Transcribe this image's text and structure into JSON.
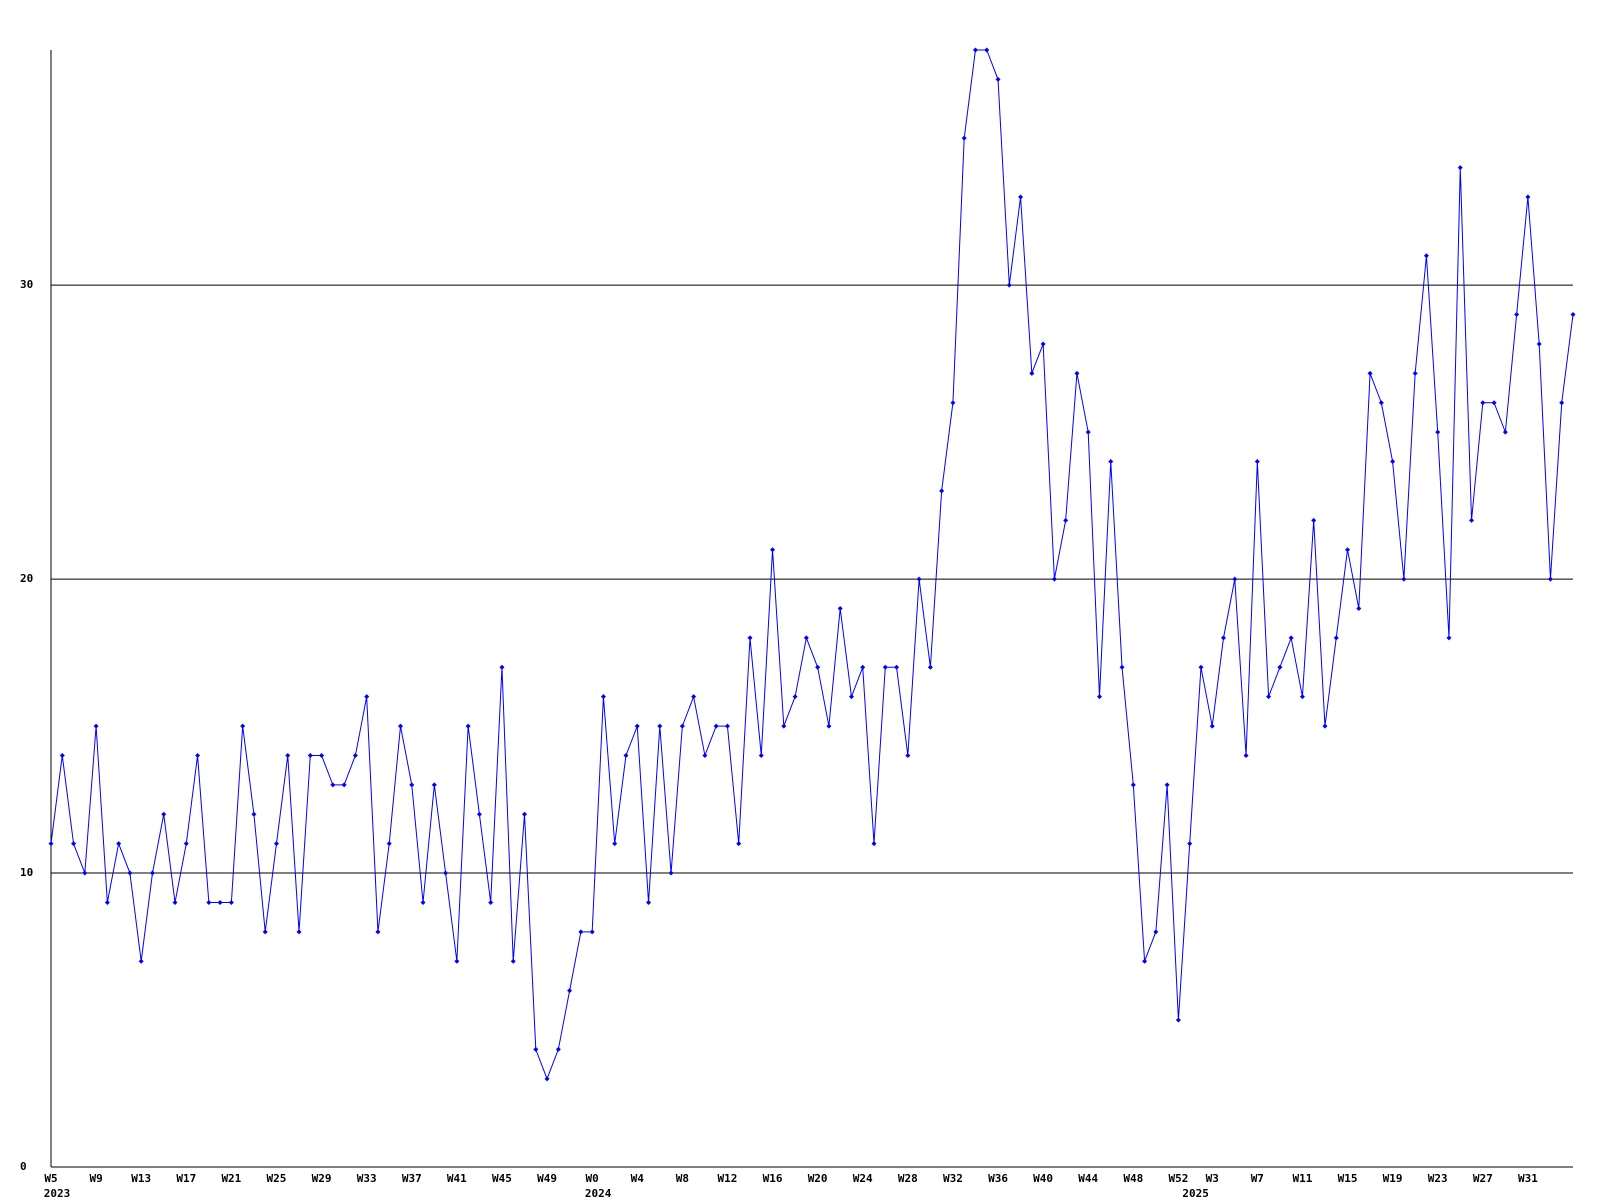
{
  "chart_data": {
    "type": "line",
    "categories": [
      "W5",
      null,
      null,
      null,
      "W9",
      null,
      null,
      null,
      "W13",
      null,
      null,
      null,
      "W17",
      null,
      null,
      null,
      "W21",
      null,
      null,
      null,
      "W25",
      null,
      null,
      null,
      "W29",
      null,
      null,
      null,
      "W33",
      null,
      null,
      null,
      "W37",
      null,
      null,
      null,
      "W41",
      null,
      null,
      null,
      "W45",
      null,
      null,
      null,
      "W49",
      null,
      null,
      null,
      "W0",
      null,
      null,
      null,
      "W4",
      null,
      null,
      null,
      "W8",
      null,
      null,
      null,
      "W12",
      null,
      null,
      null,
      "W16",
      null,
      null,
      null,
      "W20",
      null,
      null,
      null,
      "W24",
      null,
      null,
      null,
      "W28",
      null,
      null,
      null,
      "W32",
      null,
      null,
      null,
      "W36",
      null,
      null,
      null,
      "W40",
      null,
      null,
      null,
      "W44",
      null,
      null,
      null,
      "W48",
      null,
      null,
      null,
      "W52",
      null,
      null,
      "W3",
      null,
      null,
      null,
      "W7",
      null,
      null,
      null,
      "W11",
      null,
      null,
      null,
      "W15",
      null,
      null,
      null,
      "W19",
      null,
      null,
      null,
      "W23",
      null,
      null,
      null,
      "W27",
      null,
      null,
      null,
      "W31",
      null,
      null,
      null,
      null
    ],
    "years": [
      "2023",
      null,
      null,
      null,
      null,
      null,
      null,
      null,
      null,
      null,
      null,
      null,
      null,
      null,
      null,
      null,
      null,
      null,
      null,
      null,
      null,
      null,
      null,
      null,
      null,
      null,
      null,
      null,
      null,
      null,
      null,
      null,
      null,
      null,
      null,
      null,
      null,
      null,
      null,
      null,
      null,
      null,
      null,
      null,
      null,
      null,
      null,
      null,
      "2024",
      null,
      null,
      null,
      null,
      null,
      null,
      null,
      null,
      null,
      null,
      null,
      null,
      null,
      null,
      null,
      null,
      null,
      null,
      null,
      null,
      null,
      null,
      null,
      null,
      null,
      null,
      null,
      null,
      null,
      null,
      null,
      null,
      null,
      null,
      null,
      null,
      null,
      null,
      null,
      null,
      null,
      null,
      null,
      null,
      null,
      null,
      null,
      null,
      null,
      null,
      null,
      null,
      "2025",
      null,
      null,
      null,
      null,
      null,
      null,
      null,
      null,
      null,
      null,
      null,
      null,
      null,
      null,
      null,
      null,
      null,
      null,
      null,
      null,
      null,
      null,
      null,
      null,
      null,
      null,
      null,
      null,
      null,
      null,
      null,
      null,
      null,
      null
    ],
    "series": [
      {
        "color": "#0000ff",
        "values": [
          11,
          14,
          11,
          10,
          15,
          9,
          11,
          10,
          7,
          10,
          12,
          9,
          11,
          14,
          9,
          9,
          9,
          15,
          12,
          8,
          11,
          14,
          8,
          14,
          14,
          13,
          13,
          14,
          16,
          8,
          11,
          15,
          13,
          9,
          13,
          10,
          7,
          15,
          12,
          9,
          17,
          7,
          12,
          4,
          3,
          4,
          6,
          8,
          8,
          16,
          11,
          14,
          15,
          9,
          15,
          10,
          15,
          16,
          14,
          15,
          15,
          11,
          18,
          14,
          21,
          15,
          16,
          18,
          17,
          15,
          19,
          16,
          17,
          11,
          17,
          17,
          14,
          20,
          17,
          23,
          26,
          35,
          38,
          38,
          37,
          30,
          33,
          27,
          28,
          20,
          22,
          27,
          25,
          16,
          24,
          17,
          13,
          7,
          8,
          13,
          5,
          11,
          17,
          15,
          18,
          20,
          14,
          24,
          16,
          17,
          18,
          16,
          22,
          15,
          18,
          21,
          19,
          27,
          26,
          24,
          20,
          27,
          31,
          25,
          18,
          34,
          22,
          26,
          26,
          25,
          29,
          33,
          28,
          20,
          26,
          29
        ]
      }
    ],
    "ylim": [
      0,
      38
    ],
    "yticks": [
      0,
      10,
      20,
      30
    ],
    "grid": true
  }
}
